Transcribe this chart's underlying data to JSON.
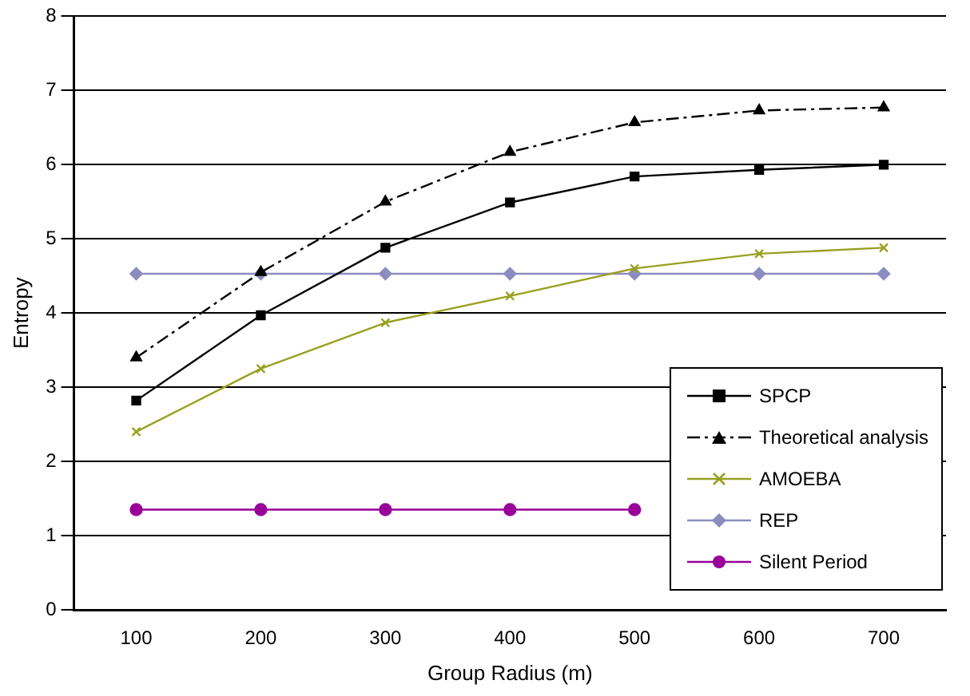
{
  "chart_data": {
    "type": "line",
    "xlabel": "Group Radius (m)",
    "ylabel": "Entropy",
    "categories": [
      "100",
      "200",
      "300",
      "400",
      "500",
      "600",
      "700"
    ],
    "ylim": [
      0,
      8
    ],
    "yticks": [
      0,
      1,
      2,
      3,
      4,
      5,
      6,
      7,
      8
    ],
    "grid": "y",
    "legend": "right",
    "series": [
      {
        "name": "SPCP",
        "color": "#000000",
        "marker": "square",
        "line_style": "solid",
        "values": [
          2.82,
          3.97,
          4.88,
          5.49,
          5.84,
          5.93,
          6.0
        ]
      },
      {
        "name": "Theoretical analysis",
        "color": "#000000",
        "marker": "triangle",
        "line_style": "dashed",
        "values": [
          3.4,
          4.55,
          5.5,
          6.17,
          6.57,
          6.73,
          6.77
        ]
      },
      {
        "name": "AMOEBA",
        "color": "#99a020",
        "marker": "cross",
        "line_style": "solid",
        "values": [
          2.4,
          3.25,
          3.87,
          4.23,
          4.6,
          4.8,
          4.88
        ]
      },
      {
        "name": "REP",
        "color": "#8c8cc0",
        "marker": "diamond",
        "line_style": "solid",
        "values": [
          4.53,
          4.53,
          4.53,
          4.53,
          4.53,
          4.53,
          4.53
        ]
      },
      {
        "name": "Silent Period",
        "color": "#990099",
        "marker": "circle",
        "line_style": "solid",
        "values": [
          1.35,
          1.35,
          1.35,
          1.35,
          1.35,
          null,
          null
        ]
      }
    ]
  }
}
